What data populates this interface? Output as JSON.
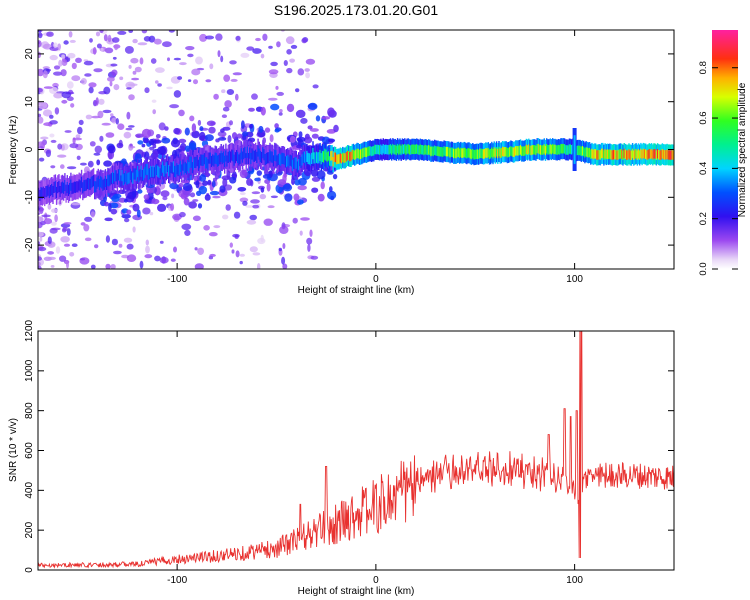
{
  "figure": {
    "title": "S196.2025.173.01.20.G01"
  },
  "chart_data": [
    {
      "type": "heatmap",
      "title": "S196.2025.173.01.20.G01",
      "xlabel": "Height of straight line (km)",
      "ylabel": "Frequency (Hz)",
      "xlim": [
        -170,
        150
      ],
      "ylim": [
        -25,
        25
      ],
      "x_ticks": [
        -100,
        0,
        100
      ],
      "y_ticks": [
        -20,
        -10,
        0,
        10,
        20
      ],
      "colorbar": {
        "label": "Normalized spectral amplitude",
        "range": [
          0,
          0.95
        ],
        "ticks": [
          0.0,
          0.2,
          0.4,
          0.6,
          0.8
        ],
        "tick_labels": [
          "0.0",
          "0.2",
          "0.4",
          "0.6",
          "0.8"
        ],
        "colormap": "rainbow (white-violet-blue-cyan-green-yellow-red-magenta)"
      },
      "description_points": {
        "track_x": [
          -170,
          -140,
          -120,
          -100,
          -80,
          -60,
          -40,
          -30,
          -20,
          -10,
          0,
          20,
          50,
          80,
          98,
          110,
          150
        ],
        "track_freq": [
          -9,
          -7,
          -5,
          -4,
          -2,
          -1,
          -3,
          -1,
          -2,
          -1,
          0,
          0,
          -1,
          0,
          0,
          -1,
          -1
        ],
        "track_amplitude": [
          0.25,
          0.3,
          0.35,
          0.35,
          0.3,
          0.3,
          0.35,
          0.45,
          0.85,
          0.8,
          0.5,
          0.6,
          0.7,
          0.75,
          0.55,
          0.8,
          0.85
        ]
      }
    },
    {
      "type": "line",
      "xlabel": "Height of straight line (km)",
      "ylabel": "SNR (10 * v/v)",
      "xlim": [
        -170,
        150
      ],
      "ylim": [
        0,
        1200
      ],
      "x_ticks": [
        -100,
        0,
        100
      ],
      "y_ticks": [
        0,
        200,
        400,
        600,
        800,
        1000,
        1200
      ],
      "series": [
        {
          "color": "#e8312f",
          "envelope_x": [
            -170,
            -150,
            -120,
            -100,
            -80,
            -60,
            -50,
            -40,
            -30,
            -20,
            -10,
            0,
            10,
            20,
            30,
            50,
            70,
            90,
            95,
            100,
            103,
            105,
            110,
            130,
            150
          ],
          "envelope_mean": [
            25,
            25,
            30,
            55,
            70,
            95,
            110,
            150,
            190,
            230,
            280,
            320,
            370,
            430,
            480,
            505,
            505,
            470,
            430,
            400,
            350,
            460,
            480,
            475,
            465
          ],
          "spikes_x": [
            -38,
            -25,
            87,
            95,
            98,
            101,
            103
          ],
          "spikes_y": [
            330,
            520,
            680,
            810,
            770,
            800,
            1200
          ]
        }
      ]
    }
  ]
}
